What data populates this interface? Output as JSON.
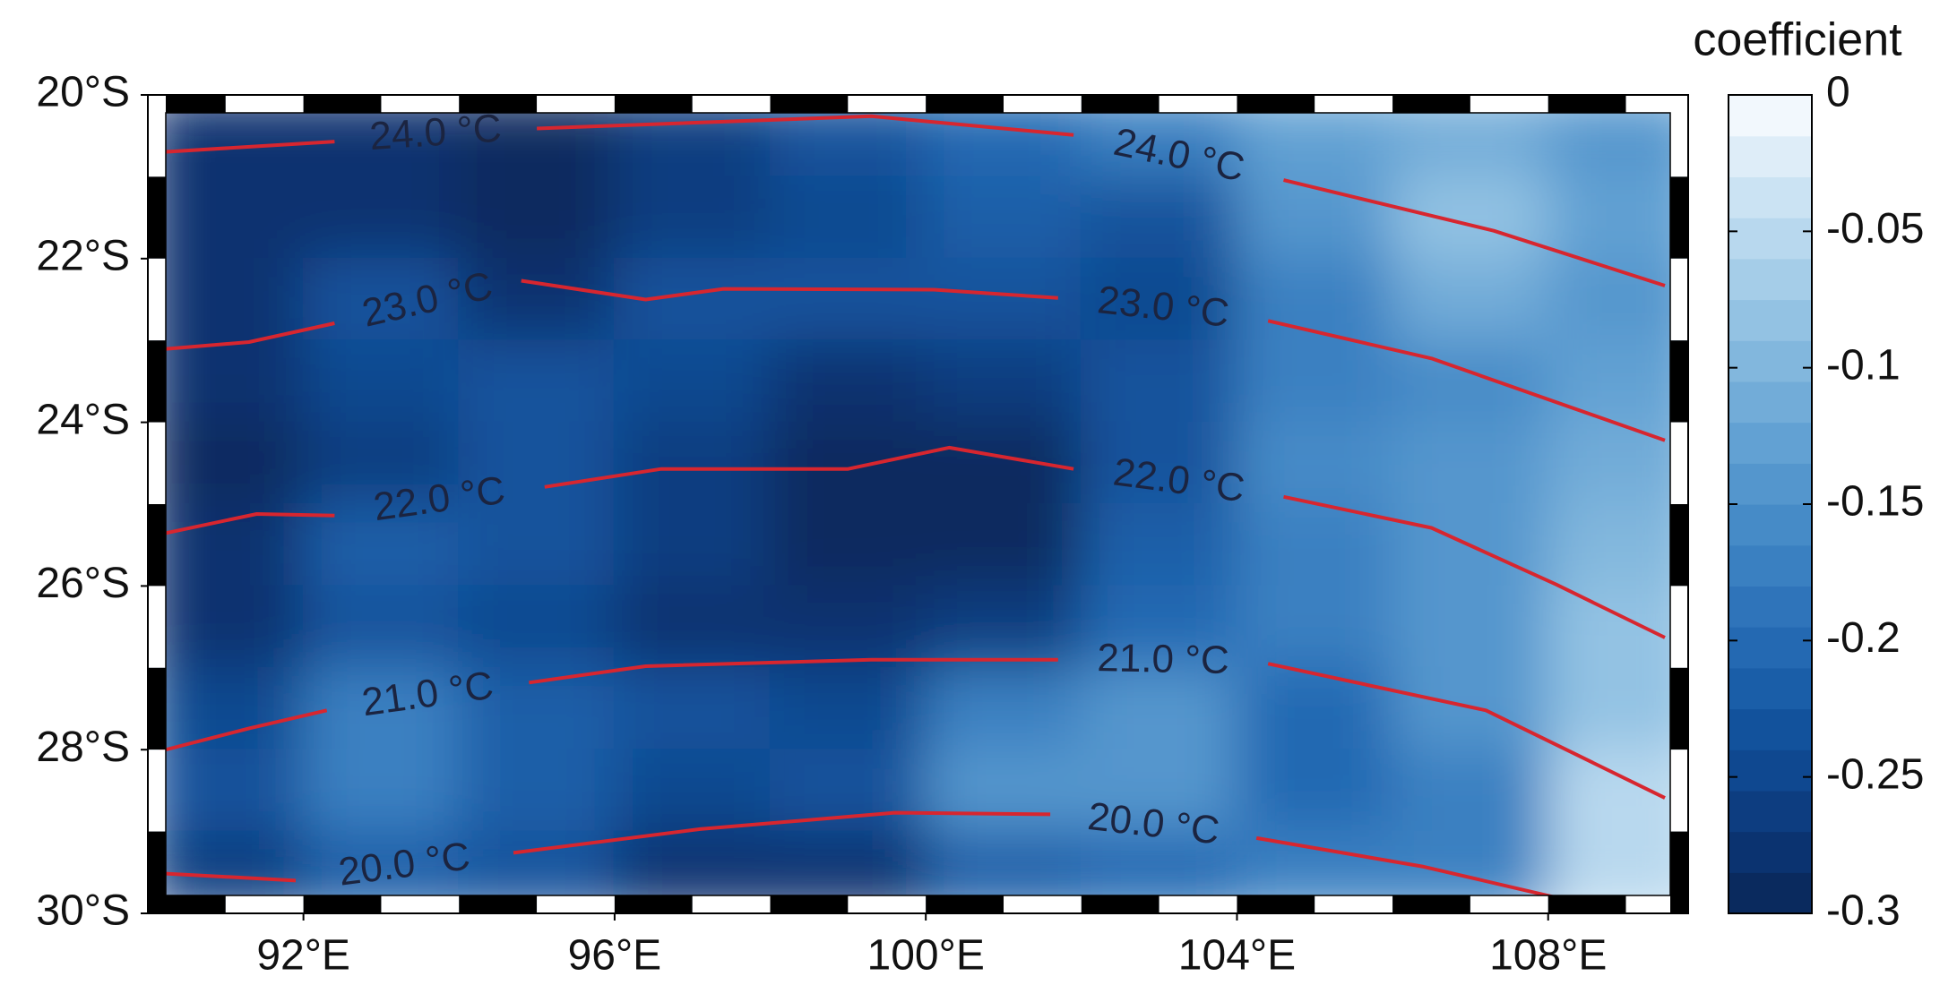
{
  "chart_data": {
    "type": "contour-map",
    "colorbar_label": "coefficient",
    "xlim": [
      90,
      109.8
    ],
    "ylim": [
      -30,
      -20
    ],
    "xticks": [
      {
        "value": 92,
        "label": "92°E"
      },
      {
        "value": 96,
        "label": "96°E"
      },
      {
        "value": 100,
        "label": "100°E"
      },
      {
        "value": 104,
        "label": "104°E"
      },
      {
        "value": 108,
        "label": "108°E"
      }
    ],
    "yticks": [
      {
        "value": -20,
        "label": "20°S"
      },
      {
        "value": -22,
        "label": "22°S"
      },
      {
        "value": -24,
        "label": "24°S"
      },
      {
        "value": -26,
        "label": "26°S"
      },
      {
        "value": -28,
        "label": "28°S"
      },
      {
        "value": -30,
        "label": "30°S"
      }
    ],
    "clim": [
      -0.3,
      0
    ],
    "cticks": [
      0,
      -0.05,
      -0.1,
      -0.15,
      -0.2,
      -0.25,
      -0.3
    ],
    "colormap": [
      "#0a2a5e",
      "#0b3370",
      "#0d3d80",
      "#0f4890",
      "#12529c",
      "#1a5ea8",
      "#2469b2",
      "#2f74ba",
      "#3a80c1",
      "#468bc7",
      "#5496cd",
      "#62a1d3",
      "#72acd8",
      "#82b7dd",
      "#93c2e3",
      "#a5cde8",
      "#b8d8ee",
      "#cbe3f3",
      "#deedf8",
      "#f2f8fd"
    ],
    "field": {
      "lon": [
        91,
        93,
        95,
        97,
        99,
        101,
        103,
        105,
        107,
        109
      ],
      "lat": [
        -20.5,
        -21.5,
        -22.5,
        -23.5,
        -24.5,
        -25.5,
        -26.5,
        -27.5,
        -28.5,
        -29.5
      ],
      "values": [
        [
          -0.27,
          -0.28,
          -0.29,
          -0.26,
          -0.24,
          -0.2,
          -0.17,
          -0.13,
          -0.12,
          -0.14
        ],
        [
          -0.28,
          -0.27,
          -0.29,
          -0.26,
          -0.25,
          -0.22,
          -0.24,
          -0.15,
          -0.08,
          -0.13
        ],
        [
          -0.28,
          -0.24,
          -0.27,
          -0.24,
          -0.24,
          -0.23,
          -0.25,
          -0.17,
          -0.11,
          -0.14
        ],
        [
          -0.28,
          -0.25,
          -0.23,
          -0.25,
          -0.28,
          -0.26,
          -0.24,
          -0.17,
          -0.16,
          -0.13
        ],
        [
          -0.29,
          -0.26,
          -0.24,
          -0.26,
          -0.29,
          -0.29,
          -0.24,
          -0.16,
          -0.15,
          -0.12
        ],
        [
          -0.28,
          -0.22,
          -0.24,
          -0.26,
          -0.3,
          -0.29,
          -0.22,
          -0.17,
          -0.15,
          -0.1
        ],
        [
          -0.28,
          -0.24,
          -0.25,
          -0.27,
          -0.28,
          -0.26,
          -0.21,
          -0.18,
          -0.15,
          -0.09
        ],
        [
          -0.25,
          -0.18,
          -0.22,
          -0.24,
          -0.25,
          -0.18,
          -0.15,
          -0.2,
          -0.14,
          -0.08
        ],
        [
          -0.24,
          -0.17,
          -0.22,
          -0.25,
          -0.24,
          -0.15,
          -0.14,
          -0.2,
          -0.17,
          -0.05
        ],
        [
          -0.26,
          -0.22,
          -0.24,
          -0.28,
          -0.27,
          -0.22,
          -0.2,
          -0.18,
          -0.17,
          -0.06
        ]
      ]
    },
    "contour_color": "#d7262f",
    "contours": [
      {
        "level": {
          "value": 24,
          "label": "24.0 °C"
        },
        "x": [
          90.15,
          92.4,
          null,
          95,
          99.3,
          101.9,
          null,
          104.6,
          107.3,
          109.5
        ],
        "y": [
          -20.7,
          -20.57,
          null,
          -20.41,
          -20.26,
          -20.49,
          null,
          -21.04,
          -21.66,
          -22.33
        ]
      },
      {
        "level": {
          "value": 23,
          "label": "23.0 °C"
        },
        "x": [
          90.15,
          91.3,
          92.4,
          null,
          94.8,
          96.4,
          97.4,
          100.1,
          101.7,
          null,
          104.4,
          106.5,
          109.5
        ],
        "y": [
          -23.11,
          -23.02,
          -22.79,
          null,
          -22.27,
          -22.5,
          -22.37,
          -22.38,
          -22.48,
          null,
          -22.76,
          -23.22,
          -24.22
        ]
      },
      {
        "level": {
          "value": 22,
          "label": "22.0 °C"
        },
        "x": [
          90.15,
          91.4,
          92.4,
          null,
          95.1,
          96.6,
          99,
          100.3,
          101.9,
          null,
          104.6,
          106.5,
          108.1,
          109.5
        ],
        "y": [
          -25.37,
          -25.12,
          -25.14,
          null,
          -24.79,
          -24.57,
          -24.57,
          -24.31,
          -24.57,
          null,
          -24.91,
          -25.29,
          -25.98,
          -26.63
        ]
      },
      {
        "level": {
          "value": 21,
          "label": "21.0 °C"
        },
        "x": [
          90.15,
          91.3,
          92.3,
          null,
          94.9,
          96.4,
          99.3,
          101.7,
          null,
          104.4,
          107.2,
          109.5
        ],
        "y": [
          -28.02,
          -27.74,
          -27.52,
          null,
          -27.18,
          -26.98,
          -26.9,
          -26.9,
          null,
          -26.95,
          -27.52,
          -28.59
        ]
      },
      {
        "level": {
          "value": 20,
          "label": "20.0 °C"
        },
        "x": [
          90.15,
          91.9,
          null,
          94.7,
          97.1,
          99.6,
          101.6,
          null,
          104.25,
          106.4,
          108.3
        ],
        "y": [
          -29.51,
          -29.6,
          null,
          -29.26,
          -28.97,
          -28.77,
          -28.79,
          null,
          -29.08,
          -29.43,
          -29.85
        ]
      }
    ]
  }
}
